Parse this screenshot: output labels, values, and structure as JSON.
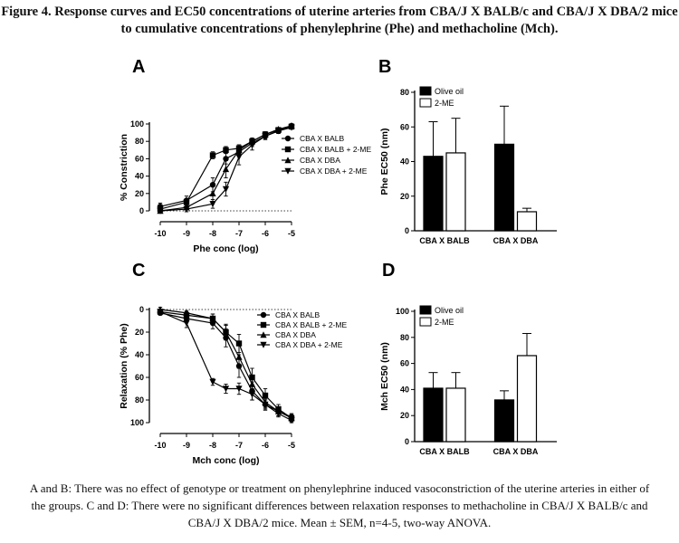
{
  "figure": {
    "title_line1": "Figure 4. Response curves and EC50 concentrations of uterine arteries from CBA/J X BALB/c and CBA/J X DBA/2 mice",
    "title_line2": "to cumulative concentrations of phenylephrine (Phe) and methacholine (Mch).",
    "caption_line1": "A and B: There was no effect of genotype or treatment on phenylephrine induced vasoconstriction of the uterine arteries in either of",
    "caption_line2": "the groups. C and D: There were no significant differences between relaxation responses to methacholine in CBA/J X BALB/c and",
    "caption_line3": "CBA/J X DBA/2 mice. Mean ± SEM, n=4-5, two-way ANOVA."
  },
  "chart_data": [
    {
      "panel": "A",
      "type": "line",
      "xlabel": "Phe conc (log)",
      "ylabel": "% Constriction",
      "xlim": [
        -10,
        -5
      ],
      "ylim": [
        0,
        100
      ],
      "xticks": [
        -10,
        -9,
        -8,
        -7,
        -6,
        -5
      ],
      "yticks": [
        0,
        20,
        40,
        60,
        80,
        100
      ],
      "xtick_labels": [
        "-10",
        "-9",
        "-8",
        "-7",
        "-6",
        "-5"
      ],
      "ytick_labels": [
        "0",
        "20",
        "40",
        "60",
        "80",
        "100"
      ],
      "baseline_dotted": 0,
      "x": [
        -10,
        -9,
        -8,
        -7.5,
        -7,
        -6.5,
        -6,
        -5.5,
        -5
      ],
      "series": [
        {
          "name": "CBA X BALB",
          "marker": "circle",
          "values": [
            5,
            12,
            30,
            60,
            68,
            78,
            86,
            92,
            98
          ],
          "err": [
            4,
            5,
            8,
            6,
            5,
            4,
            3,
            3,
            2
          ]
        },
        {
          "name": "CBA X BALB + 2-ME",
          "marker": "square",
          "values": [
            2,
            10,
            64,
            70,
            72,
            80,
            88,
            93,
            97
          ],
          "err": [
            3,
            4,
            4,
            4,
            4,
            3,
            3,
            2,
            2
          ]
        },
        {
          "name": "CBA X DBA",
          "marker": "triangle",
          "values": [
            0,
            4,
            20,
            48,
            70,
            80,
            88,
            94,
            98
          ],
          "err": [
            2,
            3,
            9,
            10,
            6,
            4,
            3,
            2,
            2
          ]
        },
        {
          "name": "CBA X DBA + 2-ME",
          "marker": "diamond",
          "values": [
            0,
            2,
            8,
            25,
            62,
            76,
            86,
            92,
            96
          ],
          "err": [
            2,
            3,
            5,
            8,
            9,
            6,
            4,
            3,
            2
          ]
        }
      ]
    },
    {
      "panel": "B",
      "type": "bar",
      "xlabel": "",
      "ylabel": "Phe EC50 (nm)",
      "ylim": [
        0,
        80
      ],
      "yticks": [
        0,
        20,
        40,
        60,
        80
      ],
      "ytick_labels": [
        "0",
        "20",
        "40",
        "60",
        "80"
      ],
      "categories": [
        "CBA X BALB",
        "CBA X DBA"
      ],
      "series": [
        {
          "name": "Olive oil",
          "color": "#000000",
          "values": [
            43,
            50
          ],
          "err": [
            20,
            22
          ]
        },
        {
          "name": "2-ME",
          "color": "#ffffff",
          "values": [
            45,
            11
          ],
          "err": [
            20,
            2
          ]
        }
      ]
    },
    {
      "panel": "C",
      "type": "line",
      "xlabel": "Mch conc (log)",
      "ylabel": "Relaxation (% Phe)",
      "xlim": [
        -10,
        -5
      ],
      "ylim": [
        0,
        100
      ],
      "y_inverted": true,
      "xticks": [
        -10,
        -9,
        -8,
        -7,
        -6,
        -5
      ],
      "yticks": [
        0,
        20,
        40,
        60,
        80,
        100
      ],
      "xtick_labels": [
        "-10",
        "-9",
        "-8",
        "-7",
        "-6",
        "-5"
      ],
      "ytick_labels": [
        "0",
        "20",
        "40",
        "60",
        "80",
        "100"
      ],
      "baseline_dotted": 0,
      "x": [
        -10,
        -9,
        -8,
        -7.5,
        -7,
        -6.5,
        -6,
        -5.5,
        -5
      ],
      "series": [
        {
          "name": "CBA X BALB",
          "marker": "circle",
          "values": [
            3,
            8,
            12,
            25,
            50,
            72,
            84,
            90,
            95
          ],
          "err": [
            2,
            3,
            5,
            8,
            10,
            8,
            5,
            4,
            3
          ]
        },
        {
          "name": "CBA X BALB + 2-ME",
          "marker": "square",
          "values": [
            2,
            5,
            8,
            20,
            30,
            60,
            76,
            88,
            96
          ],
          "err": [
            2,
            3,
            4,
            6,
            8,
            8,
            6,
            4,
            3
          ]
        },
        {
          "name": "CBA X DBA",
          "marker": "triangle",
          "values": [
            0,
            3,
            8,
            20,
            42,
            66,
            82,
            90,
            96
          ],
          "err": [
            2,
            2,
            4,
            7,
            10,
            8,
            5,
            4,
            3
          ]
        },
        {
          "name": "CBA X DBA + 2-ME",
          "marker": "diamond",
          "values": [
            2,
            12,
            64,
            70,
            70,
            75,
            84,
            92,
            98
          ],
          "err": [
            2,
            4,
            3,
            4,
            5,
            5,
            4,
            3,
            2
          ]
        }
      ]
    },
    {
      "panel": "D",
      "type": "bar",
      "xlabel": "",
      "ylabel": "Mch EC50 (nm)",
      "ylim": [
        0,
        100
      ],
      "yticks": [
        0,
        20,
        40,
        60,
        80,
        100
      ],
      "ytick_labels": [
        "0",
        "20",
        "40",
        "60",
        "80",
        "100"
      ],
      "categories": [
        "CBA X BALB",
        "CBA X DBA"
      ],
      "series": [
        {
          "name": "Olive oil",
          "color": "#000000",
          "values": [
            41,
            32
          ],
          "err": [
            12,
            7
          ]
        },
        {
          "name": "2-ME",
          "color": "#ffffff",
          "values": [
            41,
            66
          ],
          "err": [
            12,
            17
          ]
        }
      ]
    }
  ]
}
